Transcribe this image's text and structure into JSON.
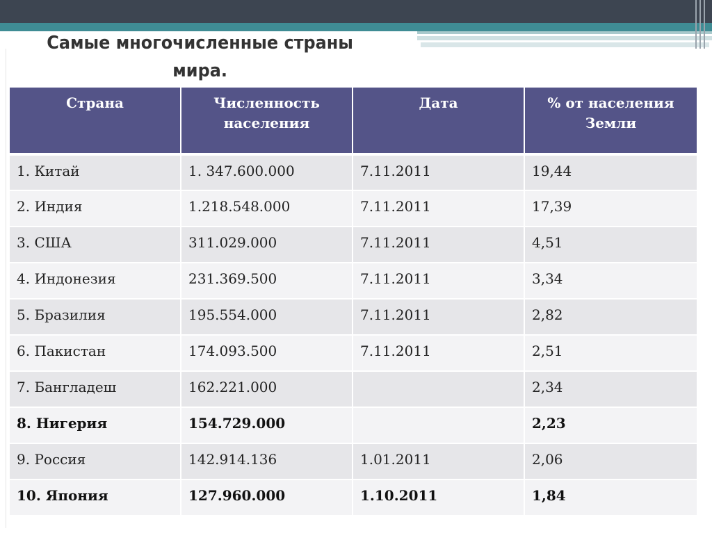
{
  "slide": {
    "title_line1": "Самые многочисленные страны",
    "title_line2": "мира."
  },
  "table": {
    "headers": [
      "Страна",
      "Численность населения",
      "Дата",
      "% от населения Земли"
    ],
    "rows": [
      {
        "country": "1. Китай",
        "population": "1. 347.600.000",
        "date": "7.11.2011",
        "percent": "19,44",
        "bold": false
      },
      {
        "country": "2. Индия",
        "population": "1.218.548.000",
        "date": "7.11.2011",
        "percent": "17,39",
        "bold": false
      },
      {
        "country": "3. США",
        "population": "311.029.000",
        "date": "7.11.2011",
        "percent": "4,51",
        "bold": false
      },
      {
        "country": "4. Индонезия",
        "population": "231.369.500",
        "date": "7.11.2011",
        "percent": "3,34",
        "bold": false
      },
      {
        "country": "5. Бразилия",
        "population": "195.554.000",
        "date": "7.11.2011",
        "percent": "2,82",
        "bold": false
      },
      {
        "country": "6. Пакистан",
        "population": "174.093.500",
        "date": "7.11.2011",
        "percent": "2,51",
        "bold": false
      },
      {
        "country": "7. Бангладеш",
        "population": "162.221.000",
        "date": "",
        "percent": "2,34",
        "bold": false
      },
      {
        "country": "8. Нигерия",
        "population": "154.729.000",
        "date": "",
        "percent": "2,23",
        "bold": true
      },
      {
        "country": "9. Россия",
        "population": "142.914.136",
        "date": "1.01.2011",
        "percent": "2,06",
        "bold": false
      },
      {
        "country": "10. Япония",
        "population": "127.960.000",
        "date": "1.10.2011",
        "percent": "1,84",
        "bold": true
      }
    ]
  },
  "colors": {
    "header_bg": "#545488",
    "row_odd": "#e6e6e9",
    "row_even": "#f3f3f5",
    "top_bar": "#3d4551",
    "accent_teal": "#3f8c94"
  }
}
